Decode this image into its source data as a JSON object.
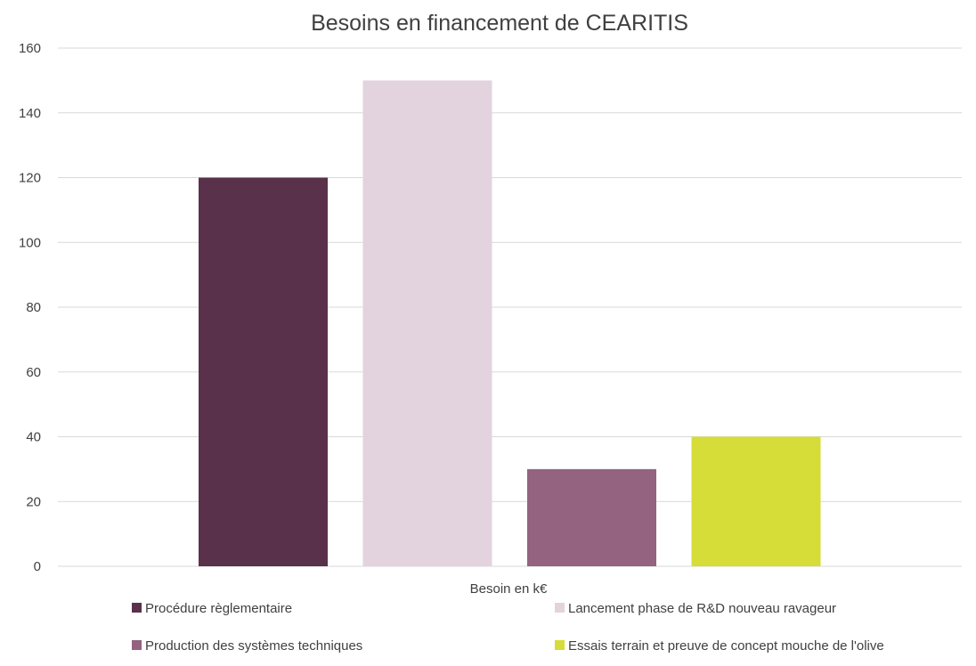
{
  "chart_data": {
    "type": "bar",
    "title": "Besoins en financement de CEARITIS",
    "xlabel": "",
    "ylabel": "",
    "categories": [
      "Besoin en k€"
    ],
    "ylim": [
      0,
      160
    ],
    "yticks": [
      0,
      20,
      40,
      60,
      80,
      100,
      120,
      140,
      160
    ],
    "grid": true,
    "legend_position": "bottom",
    "series": [
      {
        "name": "Procédure règlementaire",
        "values": [
          120
        ],
        "color": "#5a314b"
      },
      {
        "name": "Lancement phase de R&D nouveau ravageur",
        "values": [
          150
        ],
        "color": "#e2d3de"
      },
      {
        "name": "Production des systèmes techniques",
        "values": [
          30
        ],
        "color": "#93637f"
      },
      {
        "name": "Essais terrain et preuve de concept mouche de l'olive",
        "values": [
          40
        ],
        "color": "#d6dc38"
      }
    ]
  }
}
